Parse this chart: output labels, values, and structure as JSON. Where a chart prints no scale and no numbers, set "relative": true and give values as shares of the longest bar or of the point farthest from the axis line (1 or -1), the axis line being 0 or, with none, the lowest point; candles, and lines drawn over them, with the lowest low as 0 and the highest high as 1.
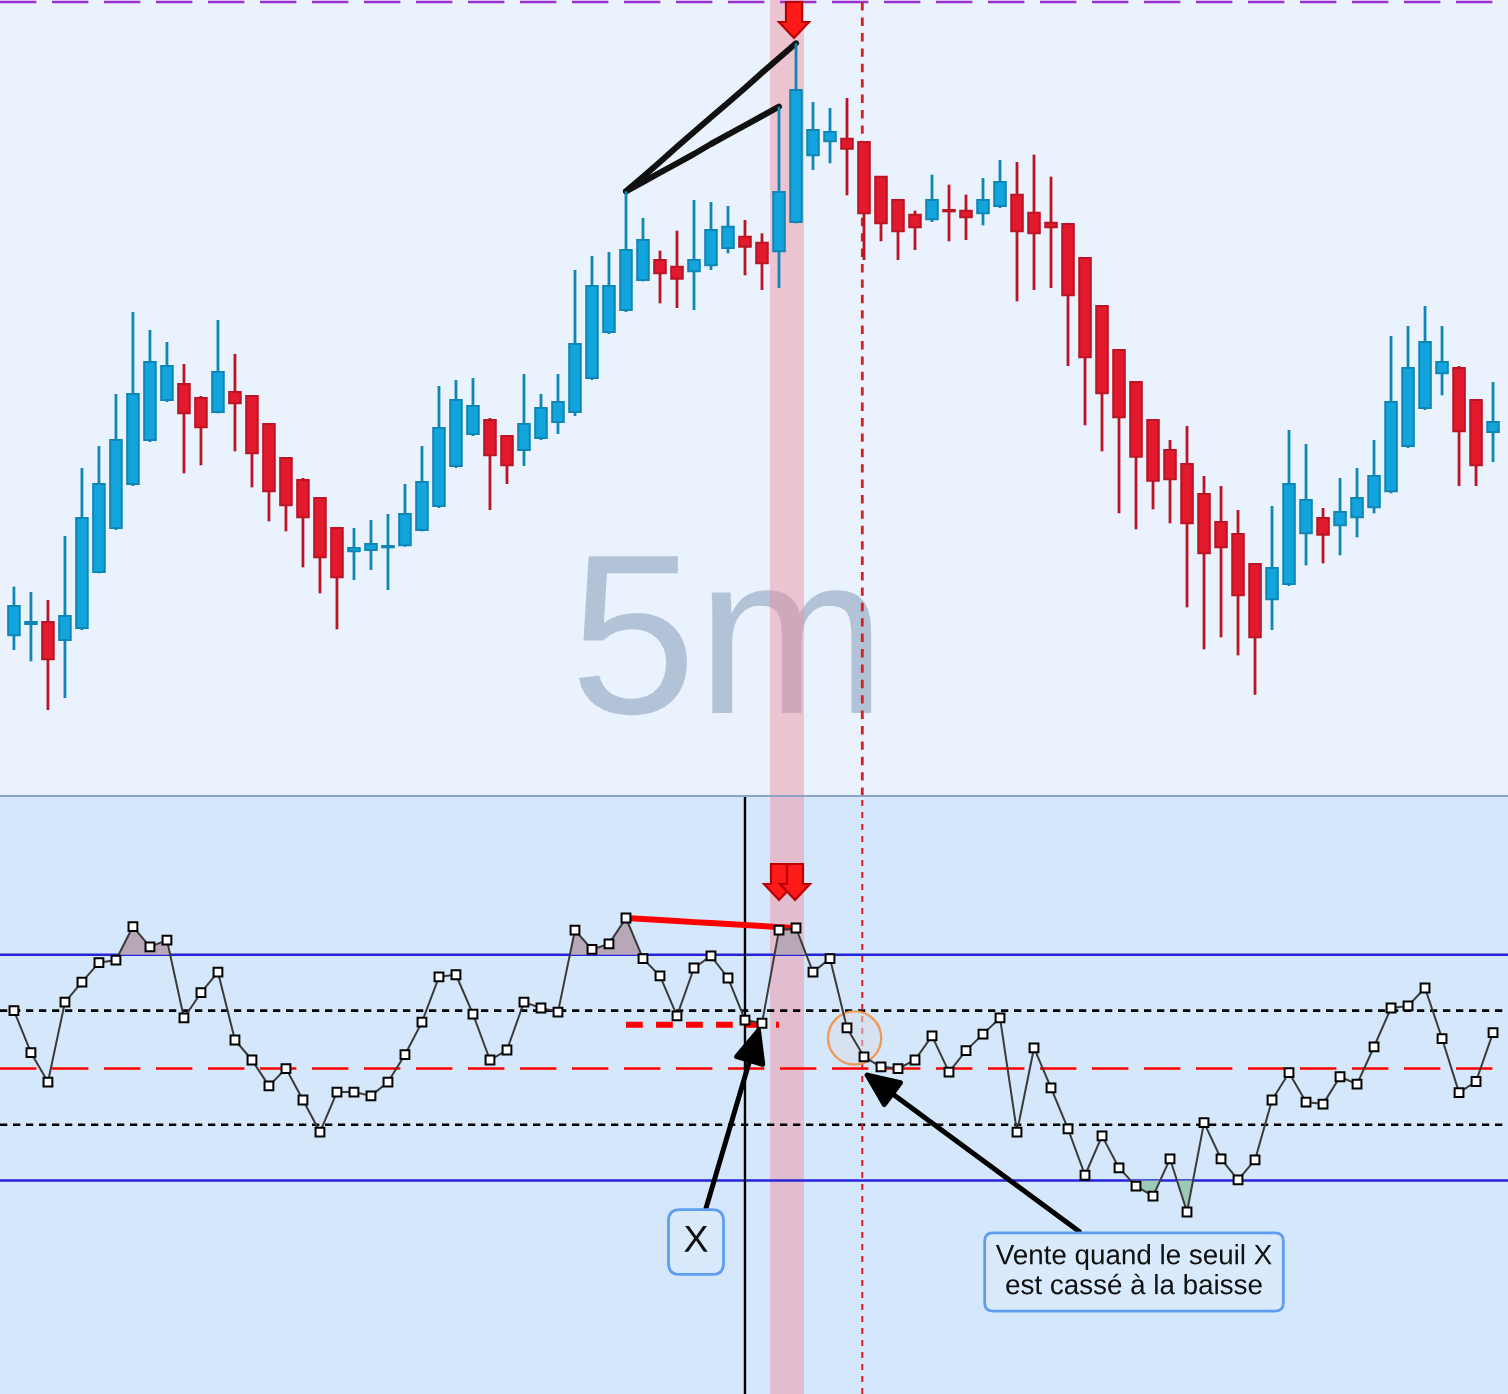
{
  "chart_data": [
    {
      "type": "candlestick",
      "relative": true,
      "categories": [
        null,
        null,
        null,
        null,
        null,
        null,
        null,
        null,
        null,
        null,
        null,
        null,
        null,
        null,
        null,
        null,
        null,
        null,
        null,
        null,
        null,
        null,
        null,
        null,
        null,
        null,
        null,
        null,
        null,
        null,
        null,
        null,
        null,
        null,
        null,
        null,
        null,
        null,
        null,
        null,
        null,
        null,
        null,
        null,
        null,
        null,
        null,
        null,
        null,
        null,
        null,
        null,
        null,
        null,
        null,
        null,
        null,
        null,
        null,
        null,
        null,
        null,
        null,
        null,
        null,
        null,
        null,
        null,
        null,
        null,
        null,
        null,
        null,
        null,
        null,
        null,
        null,
        null,
        null,
        null,
        null,
        null,
        null,
        null,
        null,
        null,
        null,
        null
      ],
      "ohlc": [
        [
          0.112,
          0.185,
          0.09,
          0.156
        ],
        [
          0.129,
          0.177,
          0.073,
          0.132
        ],
        [
          0.132,
          0.165,
          0.0,
          0.076
        ],
        [
          0.105,
          0.261,
          0.018,
          0.141
        ],
        [
          0.123,
          0.363,
          0.12,
          0.288
        ],
        [
          0.207,
          0.396,
          0.205,
          0.339
        ],
        [
          0.273,
          0.474,
          0.27,
          0.405
        ],
        [
          0.339,
          0.597,
          0.336,
          0.474
        ],
        [
          0.405,
          0.57,
          0.402,
          0.522
        ],
        [
          0.465,
          0.552,
          0.462,
          0.516
        ],
        [
          0.489,
          0.519,
          0.355,
          0.445
        ],
        [
          0.468,
          0.471,
          0.367,
          0.424
        ],
        [
          0.447,
          0.585,
          0.445,
          0.507
        ],
        [
          0.477,
          0.534,
          0.388,
          0.46
        ],
        [
          0.471,
          0.471,
          0.334,
          0.385
        ],
        [
          0.429,
          0.429,
          0.283,
          0.328
        ],
        [
          0.378,
          0.378,
          0.268,
          0.307
        ],
        [
          0.345,
          0.348,
          0.214,
          0.289
        ],
        [
          0.318,
          0.318,
          0.175,
          0.229
        ],
        [
          0.273,
          0.273,
          0.121,
          0.199
        ],
        [
          0.238,
          0.273,
          0.195,
          0.243
        ],
        [
          0.24,
          0.285,
          0.21,
          0.249
        ],
        [
          0.244,
          0.294,
          0.18,
          0.246
        ],
        [
          0.247,
          0.339,
          0.245,
          0.294
        ],
        [
          0.27,
          0.396,
          0.268,
          0.342
        ],
        [
          0.306,
          0.486,
          0.303,
          0.423
        ],
        [
          0.366,
          0.495,
          0.363,
          0.465
        ],
        [
          0.414,
          0.498,
          0.411,
          0.456
        ],
        [
          0.435,
          0.438,
          0.3,
          0.382
        ],
        [
          0.411,
          0.411,
          0.339,
          0.367
        ],
        [
          0.39,
          0.504,
          0.366,
          0.429
        ],
        [
          0.408,
          0.474,
          0.405,
          0.453
        ],
        [
          0.432,
          0.504,
          0.414,
          0.462
        ],
        [
          0.447,
          0.66,
          0.441,
          0.549
        ],
        [
          0.498,
          0.681,
          0.495,
          0.636
        ],
        [
          0.567,
          0.687,
          0.564,
          0.636
        ],
        [
          0.6,
          0.778,
          0.597,
          0.69
        ],
        [
          0.645,
          0.738,
          0.643,
          0.705
        ],
        [
          0.675,
          0.689,
          0.61,
          0.655
        ],
        [
          0.665,
          0.719,
          0.603,
          0.647
        ],
        [
          0.658,
          0.765,
          0.6,
          0.675
        ],
        [
          0.667,
          0.762,
          0.66,
          0.72
        ],
        [
          0.693,
          0.756,
          0.685,
          0.725
        ],
        [
          0.71,
          0.735,
          0.652,
          0.695
        ],
        [
          0.701,
          0.715,
          0.63,
          0.67
        ],
        [
          0.688,
          0.905,
          0.633,
          0.777
        ],
        [
          0.732,
          1.0,
          0.73,
          0.93
        ],
        [
          0.832,
          0.912,
          0.81,
          0.87
        ],
        [
          0.853,
          0.903,
          0.82,
          0.867
        ],
        [
          0.857,
          0.918,
          0.772,
          0.842
        ],
        [
          0.852,
          0.852,
          0.675,
          0.745
        ],
        [
          0.8,
          0.8,
          0.703,
          0.73
        ],
        [
          0.765,
          0.765,
          0.675,
          0.718
        ],
        [
          0.743,
          0.749,
          0.69,
          0.724
        ],
        [
          0.736,
          0.803,
          0.732,
          0.765
        ],
        [
          0.75,
          0.788,
          0.703,
          0.748
        ],
        [
          0.749,
          0.773,
          0.705,
          0.739
        ],
        [
          0.745,
          0.798,
          0.727,
          0.765
        ],
        [
          0.756,
          0.825,
          0.753,
          0.792
        ],
        [
          0.773,
          0.822,
          0.613,
          0.718
        ],
        [
          0.746,
          0.833,
          0.63,
          0.715
        ],
        [
          0.731,
          0.8,
          0.633,
          0.724
        ],
        [
          0.729,
          0.729,
          0.516,
          0.622
        ],
        [
          0.678,
          0.678,
          0.427,
          0.529
        ],
        [
          0.606,
          0.606,
          0.388,
          0.475
        ],
        [
          0.54,
          0.54,
          0.295,
          0.439
        ],
        [
          0.492,
          0.492,
          0.271,
          0.38
        ],
        [
          0.435,
          0.435,
          0.301,
          0.344
        ],
        [
          0.39,
          0.405,
          0.28,
          0.346
        ],
        [
          0.369,
          0.426,
          0.154,
          0.28
        ],
        [
          0.324,
          0.351,
          0.091,
          0.235
        ],
        [
          0.282,
          0.336,
          0.109,
          0.244
        ],
        [
          0.264,
          0.3,
          0.082,
          0.172
        ],
        [
          0.219,
          0.219,
          0.023,
          0.109
        ],
        [
          0.166,
          0.306,
          0.12,
          0.213
        ],
        [
          0.189,
          0.42,
          0.186,
          0.339
        ],
        [
          0.265,
          0.399,
          0.217,
          0.315
        ],
        [
          0.288,
          0.303,
          0.22,
          0.263
        ],
        [
          0.277,
          0.348,
          0.232,
          0.297
        ],
        [
          0.289,
          0.363,
          0.259,
          0.318
        ],
        [
          0.304,
          0.405,
          0.295,
          0.351
        ],
        [
          0.328,
          0.561,
          0.325,
          0.462
        ],
        [
          0.396,
          0.576,
          0.393,
          0.513
        ],
        [
          0.453,
          0.606,
          0.45,
          0.552
        ],
        [
          0.505,
          0.576,
          0.472,
          0.522
        ],
        [
          0.513,
          0.516,
          0.336,
          0.418
        ],
        [
          0.465,
          0.465,
          0.336,
          0.367
        ],
        [
          0.417,
          0.492,
          0.372,
          0.432
        ]
      ],
      "colors": [
        "#12a4dc",
        "#12a4dc",
        "#e3192d",
        "#12a4dc",
        "#12a4dc",
        "#12a4dc",
        "#12a4dc",
        "#12a4dc",
        "#12a4dc",
        "#12a4dc",
        "#e3192d",
        "#e3192d",
        "#12a4dc",
        "#e3192d",
        "#e3192d",
        "#e3192d",
        "#e3192d",
        "#e3192d",
        "#e3192d",
        "#e3192d",
        "#12a4dc",
        "#12a4dc",
        "#12a4dc",
        "#12a4dc",
        "#12a4dc",
        "#12a4dc",
        "#12a4dc",
        "#12a4dc",
        "#e3192d",
        "#e3192d",
        "#12a4dc",
        "#12a4dc",
        "#12a4dc",
        "#12a4dc",
        "#12a4dc",
        "#12a4dc",
        "#12a4dc",
        "#12a4dc",
        "#e3192d",
        "#e3192d",
        "#12a4dc",
        "#12a4dc",
        "#12a4dc",
        "#e3192d",
        "#e3192d",
        "#12a4dc",
        "#12a4dc",
        "#12a4dc",
        "#12a4dc",
        "#e3192d",
        "#e3192d",
        "#e3192d",
        "#e3192d",
        "#e3192d",
        "#12a4dc",
        "#e3192d",
        "#e3192d",
        "#12a4dc",
        "#12a4dc",
        "#e3192d",
        "#e3192d",
        "#e3192d",
        "#e3192d",
        "#e3192d",
        "#e3192d",
        "#e3192d",
        "#e3192d",
        "#e3192d",
        "#e3192d",
        "#e3192d",
        "#e3192d",
        "#e3192d",
        "#e3192d",
        "#e3192d",
        "#12a4dc",
        "#12a4dc",
        "#12a4dc",
        "#e3192d",
        "#12a4dc",
        "#12a4dc",
        "#12a4dc",
        "#12a4dc",
        "#12a4dc",
        "#12a4dc",
        "#12a4dc",
        "#e3192d",
        "#e3192d",
        "#12a4dc"
      ],
      "series": [
        {
          "type": "line",
          "color": "#111111",
          "values": [
            null,
            null,
            null,
            null,
            null,
            null,
            null,
            null,
            null,
            null,
            null,
            null,
            null,
            null,
            null,
            null,
            null,
            null,
            null,
            null,
            null,
            null,
            null,
            null,
            null,
            null,
            null,
            null,
            null,
            null,
            null,
            null,
            null,
            null,
            null,
            null,
            0.778,
            0.8,
            0.822,
            0.845,
            0.867,
            0.889,
            0.911,
            0.933,
            0.956,
            0.978,
            1.0,
            null,
            null,
            null,
            null,
            null,
            null,
            null,
            null,
            null,
            null,
            null,
            null,
            null,
            null,
            null,
            null,
            null,
            null,
            null,
            null,
            null,
            null,
            null,
            null,
            null,
            null,
            null,
            null,
            null,
            null,
            null,
            null,
            null,
            null,
            null,
            null,
            null,
            null,
            null,
            null,
            null
          ]
        },
        {
          "type": "line",
          "color": "#111111",
          "values": [
            null,
            null,
            null,
            null,
            null,
            null,
            null,
            null,
            null,
            null,
            null,
            null,
            null,
            null,
            null,
            null,
            null,
            null,
            null,
            null,
            null,
            null,
            null,
            null,
            null,
            null,
            null,
            null,
            null,
            null,
            null,
            null,
            null,
            null,
            null,
            null,
            0.778,
            0.792,
            0.806,
            0.82,
            0.834,
            0.849,
            0.863,
            0.877,
            0.891,
            0.905,
            null,
            null,
            null,
            null,
            null,
            null,
            null,
            null,
            null,
            null,
            null,
            null,
            null,
            null,
            null,
            null,
            null,
            null,
            null,
            null,
            null,
            null,
            null,
            null,
            null,
            null,
            null,
            null,
            null,
            null,
            null,
            null,
            null,
            null,
            null,
            null,
            null,
            null,
            null,
            null,
            null,
            null
          ]
        }
      ],
      "ref_lines": [
        {
          "axis": "y",
          "value": 1.062,
          "color": "#9b30d0",
          "line_style": "dashed"
        }
      ],
      "annotations": [
        "5m"
      ]
    },
    {
      "type": "line",
      "relative": true,
      "marker": "square",
      "categories": [
        null,
        null,
        null,
        null,
        null,
        null,
        null,
        null,
        null,
        null,
        null,
        null,
        null,
        null,
        null,
        null,
        null,
        null,
        null,
        null,
        null,
        null,
        null,
        null,
        null,
        null,
        null,
        null,
        null,
        null,
        null,
        null,
        null,
        null,
        null,
        null,
        null,
        null,
        null,
        null,
        null,
        null,
        null,
        null,
        null,
        null,
        null,
        null,
        null,
        null,
        null,
        null,
        null,
        null,
        null,
        null,
        null,
        null,
        null,
        null,
        null,
        null,
        null,
        null,
        null,
        null,
        null,
        null,
        null,
        null,
        null,
        null,
        null,
        null,
        null,
        null,
        null,
        null,
        null,
        null,
        null,
        null,
        null,
        null,
        null,
        null,
        null,
        null
      ],
      "series": [
        {
          "color": "#3a3a3a",
          "values": [
            0.685,
            0.542,
            0.442,
            0.714,
            0.782,
            0.848,
            0.857,
            0.971,
            0.902,
            0.925,
            0.66,
            0.746,
            0.816,
            0.585,
            0.517,
            0.429,
            0.488,
            0.381,
            0.272,
            0.408,
            0.408,
            0.395,
            0.442,
            0.535,
            0.646,
            0.8,
            0.807,
            0.673,
            0.517,
            0.551,
            0.714,
            0.694,
            0.68,
            0.959,
            0.893,
            0.912,
            1.0,
            0.862,
            0.803,
            0.667,
            0.83,
            0.871,
            0.796,
            0.653,
            0.642,
            0.959,
            0.966,
            0.816,
            0.862,
            0.626,
            0.528,
            0.494,
            0.488,
            0.517,
            0.599,
            0.476,
            0.549,
            0.605,
            0.66,
            0.272,
            0.558,
            0.422,
            0.283,
            0.125,
            0.259,
            0.15,
            0.088,
            0.054,
            0.181,
            0.0,
            0.304,
            0.181,
            0.109,
            0.177,
            0.381,
            0.474,
            0.374,
            0.367,
            0.46,
            0.435,
            0.562,
            0.694,
            0.701,
            0.762,
            0.59,
            0.406,
            0.444,
            0.61
          ]
        },
        {
          "color": "#ff0000",
          "marker": "none",
          "values": [
            null,
            null,
            null,
            null,
            null,
            null,
            null,
            null,
            null,
            null,
            null,
            null,
            null,
            null,
            null,
            null,
            null,
            null,
            null,
            null,
            null,
            null,
            null,
            null,
            null,
            null,
            null,
            null,
            null,
            null,
            null,
            null,
            null,
            null,
            null,
            null,
            1.0,
            0.997,
            0.993,
            0.99,
            0.986,
            0.983,
            0.98,
            0.976,
            0.973,
            0.969,
            0.966,
            null,
            null,
            null,
            null,
            null,
            null,
            null,
            null,
            null,
            null,
            null,
            null,
            null,
            null,
            null,
            null,
            null,
            null,
            null,
            null,
            null,
            null,
            null,
            null,
            null,
            null,
            null,
            null,
            null,
            null,
            null,
            null,
            null,
            null,
            null,
            null,
            null,
            null,
            null,
            null,
            null
          ]
        },
        {
          "color": "#ff0000",
          "marker": "none",
          "line_style": "dotted",
          "values": [
            null,
            null,
            null,
            null,
            null,
            null,
            null,
            null,
            null,
            null,
            null,
            null,
            null,
            null,
            null,
            null,
            null,
            null,
            null,
            null,
            null,
            null,
            null,
            null,
            null,
            null,
            null,
            null,
            null,
            null,
            null,
            null,
            null,
            null,
            null,
            null,
            0.637,
            0.637,
            0.637,
            0.637,
            0.637,
            0.637,
            0.637,
            0.637,
            0.637,
            0.637,
            null,
            null,
            null,
            null,
            null,
            null,
            null,
            null,
            null,
            null,
            null,
            null,
            null,
            null,
            null,
            null,
            null,
            null,
            null,
            null,
            null,
            null,
            null,
            null,
            null,
            null,
            null,
            null,
            null,
            null,
            null,
            null,
            null,
            null,
            null,
            null,
            null,
            null,
            null,
            null,
            null,
            null
          ]
        }
      ],
      "ref_lines": [
        {
          "axis": "y",
          "value": 0.875,
          "color": "#2424d8"
        },
        {
          "axis": "y",
          "value": 0.685,
          "color": "#000000",
          "line_style": "dotted"
        },
        {
          "axis": "y",
          "value": 0.488,
          "color": "#ff0000",
          "line_style": "dashed"
        },
        {
          "axis": "y",
          "value": 0.297,
          "color": "#000000",
          "line_style": "dotted"
        },
        {
          "axis": "y",
          "value": 0.107,
          "color": "#2424d8"
        }
      ],
      "annotations": [
        "X",
        "Vente quand le seuil X\nest cassé à la baisse"
      ]
    }
  ]
}
